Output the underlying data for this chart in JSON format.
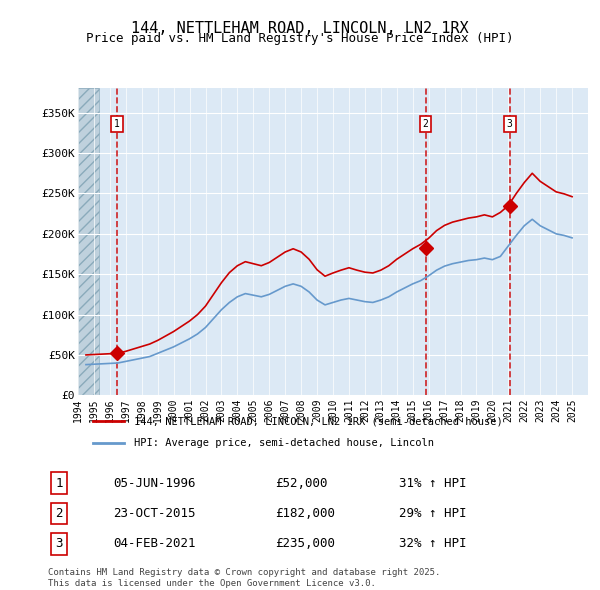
{
  "title_line1": "144, NETTLEHAM ROAD, LINCOLN, LN2 1RX",
  "title_line2": "Price paid vs. HM Land Registry's House Price Index (HPI)",
  "ylabel": "",
  "xlim_start": 1994.0,
  "xlim_end": 2026.0,
  "ylim_min": 0,
  "ylim_max": 380000,
  "yticks": [
    0,
    50000,
    100000,
    150000,
    200000,
    250000,
    300000,
    350000
  ],
  "ytick_labels": [
    "£0",
    "£50K",
    "£100K",
    "£150K",
    "£200K",
    "£250K",
    "£300K",
    "£350K"
  ],
  "bg_color": "#dce9f5",
  "hatch_color": "#c0d0e0",
  "grid_color": "#ffffff",
  "red_line_color": "#cc0000",
  "blue_line_color": "#6699cc",
  "purchase_dates": [
    1996.44,
    2015.81,
    2021.09
  ],
  "purchase_prices": [
    52000,
    182000,
    235000
  ],
  "purchase_labels": [
    "1",
    "2",
    "3"
  ],
  "legend_entry1": "144, NETTLEHAM ROAD, LINCOLN, LN2 1RX (semi-detached house)",
  "legend_entry2": "HPI: Average price, semi-detached house, Lincoln",
  "table_rows": [
    {
      "num": "1",
      "date": "05-JUN-1996",
      "price": "£52,000",
      "hpi": "31% ↑ HPI"
    },
    {
      "num": "2",
      "date": "23-OCT-2015",
      "price": "£182,000",
      "hpi": "29% ↑ HPI"
    },
    {
      "num": "3",
      "date": "04-FEB-2021",
      "price": "£235,000",
      "hpi": "32% ↑ HPI"
    }
  ],
  "footer": "Contains HM Land Registry data © Crown copyright and database right 2025.\nThis data is licensed under the Open Government Licence v3.0.",
  "hpi_blue_data": {
    "years": [
      1994.5,
      1995.0,
      1995.5,
      1996.0,
      1996.5,
      1997.0,
      1997.5,
      1998.0,
      1998.5,
      1999.0,
      1999.5,
      2000.0,
      2000.5,
      2001.0,
      2001.5,
      2002.0,
      2002.5,
      2003.0,
      2003.5,
      2004.0,
      2004.5,
      2005.0,
      2005.5,
      2006.0,
      2006.5,
      2007.0,
      2007.5,
      2008.0,
      2008.5,
      2009.0,
      2009.5,
      2010.0,
      2010.5,
      2011.0,
      2011.5,
      2012.0,
      2012.5,
      2013.0,
      2013.5,
      2014.0,
      2014.5,
      2015.0,
      2015.5,
      2016.0,
      2016.5,
      2017.0,
      2017.5,
      2018.0,
      2018.5,
      2019.0,
      2019.5,
      2020.0,
      2020.5,
      2021.0,
      2021.5,
      2022.0,
      2022.5,
      2023.0,
      2023.5,
      2024.0,
      2024.5,
      2025.0
    ],
    "values": [
      38000,
      38500,
      39000,
      39500,
      40000,
      42000,
      44000,
      46000,
      48000,
      52000,
      56000,
      60000,
      65000,
      70000,
      76000,
      84000,
      95000,
      106000,
      115000,
      122000,
      126000,
      124000,
      122000,
      125000,
      130000,
      135000,
      138000,
      135000,
      128000,
      118000,
      112000,
      115000,
      118000,
      120000,
      118000,
      116000,
      115000,
      118000,
      122000,
      128000,
      133000,
      138000,
      142000,
      148000,
      155000,
      160000,
      163000,
      165000,
      167000,
      168000,
      170000,
      168000,
      172000,
      185000,
      198000,
      210000,
      218000,
      210000,
      205000,
      200000,
      198000,
      195000
    ]
  },
  "red_hpi_data": {
    "years": [
      1994.5,
      1995.0,
      1995.5,
      1996.0,
      1996.5,
      1997.0,
      1997.5,
      1998.0,
      1998.5,
      1999.0,
      1999.5,
      2000.0,
      2000.5,
      2001.0,
      2001.5,
      2002.0,
      2002.5,
      2003.0,
      2003.5,
      2004.0,
      2004.5,
      2005.0,
      2005.5,
      2006.0,
      2006.5,
      2007.0,
      2007.5,
      2008.0,
      2008.5,
      2009.0,
      2009.5,
      2010.0,
      2010.5,
      2011.0,
      2011.5,
      2012.0,
      2012.5,
      2013.0,
      2013.5,
      2014.0,
      2014.5,
      2015.0,
      2015.5,
      2016.0,
      2016.5,
      2017.0,
      2017.5,
      2018.0,
      2018.5,
      2019.0,
      2019.5,
      2020.0,
      2020.5,
      2021.0,
      2021.5,
      2022.0,
      2022.5,
      2023.0,
      2023.5,
      2024.0,
      2024.5,
      2025.0
    ],
    "values": [
      50000,
      50500,
      51000,
      51500,
      52000,
      54500,
      57500,
      60500,
      63500,
      68000,
      73500,
      79000,
      85500,
      92000,
      100000,
      110500,
      125000,
      139500,
      152000,
      160500,
      165500,
      163000,
      160500,
      164500,
      171000,
      177500,
      181500,
      177500,
      168500,
      155500,
      147500,
      151500,
      155000,
      158000,
      155000,
      152500,
      151500,
      155000,
      160500,
      168500,
      175000,
      181500,
      187000,
      194500,
      204000,
      210500,
      214500,
      217000,
      219500,
      221000,
      223500,
      221000,
      226500,
      235000,
      250000,
      263500,
      275000,
      265000,
      258500,
      252000,
      249500,
      246000
    ],
    "segment_colors": [
      "#cc0000",
      "#cc0000",
      "#cc0000",
      "#cc0000",
      "#cc0000",
      "#cc0000",
      "#cc0000",
      "#cc0000",
      "#cc0000",
      "#cc0000",
      "#cc0000",
      "#cc0000",
      "#cc0000",
      "#cc0000",
      "#cc0000",
      "#cc0000",
      "#cc0000",
      "#cc0000",
      "#cc0000",
      "#cc0000",
      "#cc0000",
      "#cc0000",
      "#cc0000",
      "#cc0000",
      "#cc0000",
      "#cc0000",
      "#cc0000",
      "#cc0000",
      "#cc0000",
      "#cc0000",
      "#cc0000",
      "#cc0000",
      "#cc0000",
      "#cc0000",
      "#cc0000",
      "#cc0000",
      "#cc0000",
      "#cc0000",
      "#cc0000",
      "#cc0000",
      "#cc0000",
      "#cc0000",
      "#cc0000",
      "#cc0000",
      "#cc0000",
      "#cc0000",
      "#cc0000",
      "#cc0000",
      "#cc0000",
      "#cc0000",
      "#cc0000",
      "#cc0000",
      "#cc0000",
      "#cc0000",
      "#cc0000",
      "#cc0000",
      "#cc0000",
      "#cc0000",
      "#cc0000",
      "#cc0000",
      "#cc0000",
      "#cc0000"
    ]
  }
}
